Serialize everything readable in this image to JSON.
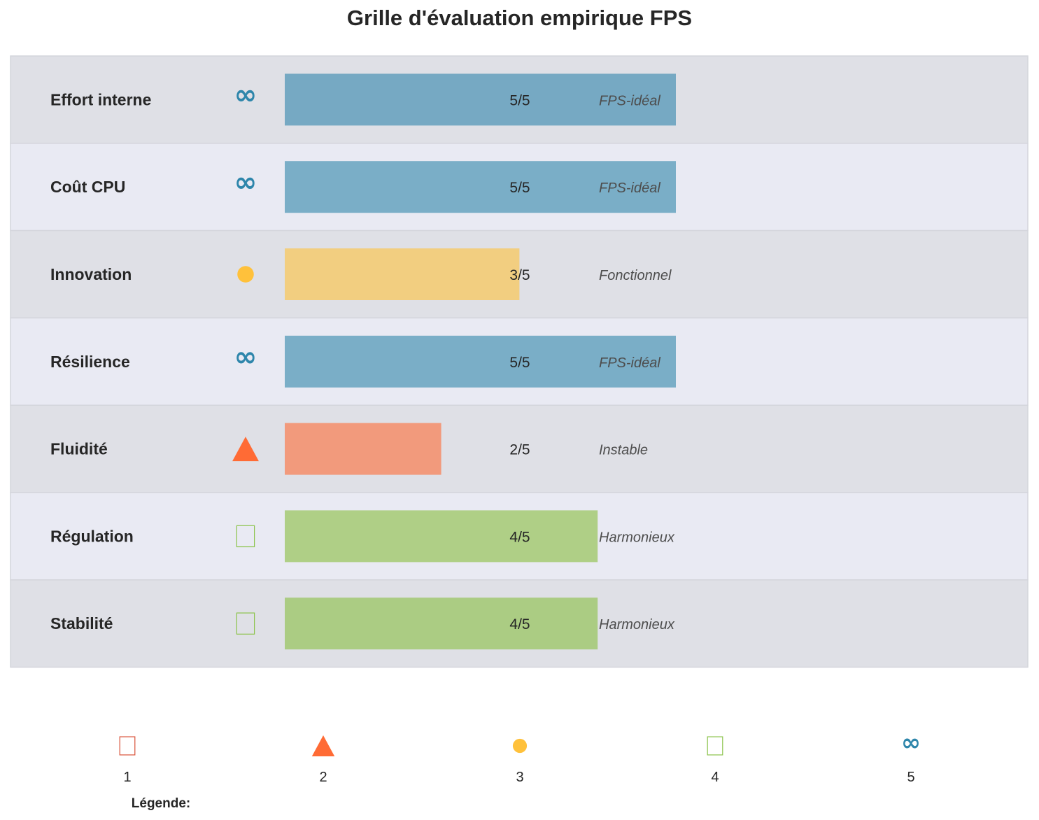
{
  "chart_data": {
    "type": "bar",
    "orientation": "horizontal",
    "title": "Grille d'évaluation empirique FPS",
    "xlim": [
      0,
      5
    ],
    "grid": false,
    "rows": [
      {
        "label": "Effort interne",
        "value": 5,
        "score_text": "5/5",
        "status": "FPS-idéal",
        "marker": "infinity",
        "color": "#76a9c3"
      },
      {
        "label": "Coût CPU",
        "value": 5,
        "score_text": "5/5",
        "status": "FPS-idéal",
        "marker": "infinity",
        "color": "#7aaec7"
      },
      {
        "label": "Innovation",
        "value": 3,
        "score_text": "3/5",
        "status": "Fonctionnel",
        "marker": "circle",
        "color": "#f2ce80"
      },
      {
        "label": "Résilience",
        "value": 5,
        "score_text": "5/5",
        "status": "FPS-idéal",
        "marker": "infinity",
        "color": "#7aaec7"
      },
      {
        "label": "Fluidité",
        "value": 2,
        "score_text": "2/5",
        "status": "Instable",
        "marker": "triangle",
        "color": "#f29a7c"
      },
      {
        "label": "Régulation",
        "value": 4,
        "score_text": "4/5",
        "status": "Harmonieux",
        "marker": "square",
        "color": "#afcf86"
      },
      {
        "label": "Stabilité",
        "value": 4,
        "score_text": "4/5",
        "status": "Harmonieux",
        "marker": "square",
        "color": "#abcc83"
      }
    ],
    "row_band_colors": [
      "#dfe0e6",
      "#e9eaf3"
    ],
    "legend": {
      "title": "Légende:",
      "placement": "bottom",
      "items": [
        {
          "label": "1",
          "marker": "square",
          "color": "#d9533a"
        },
        {
          "label": "2",
          "marker": "triangle",
          "color": "#ff6b35"
        },
        {
          "label": "3",
          "marker": "circle",
          "color": "#ffc13b"
        },
        {
          "label": "4",
          "marker": "square",
          "color": "#8bc34a"
        },
        {
          "label": "5",
          "marker": "infinity",
          "color": "#2e86ab"
        }
      ]
    },
    "marker_colors": {
      "infinity": "#2e86ab",
      "circle": "#ffc13b",
      "triangle": "#ff6b35",
      "square": "#8bc34a"
    }
  }
}
